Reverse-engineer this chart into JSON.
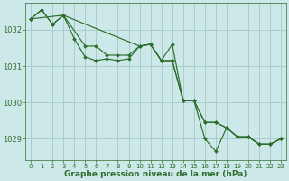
{
  "title": "Graphe pression niveau de la mer (hPa)",
  "bg_color": "#cce8e8",
  "grid_color": "#aacccc",
  "line_color": "#2d6e2d",
  "marker_color": "#2d6e2d",
  "xlim": [
    -0.5,
    23.5
  ],
  "ylim": [
    1028.4,
    1032.75
  ],
  "yticks": [
    1029,
    1030,
    1031,
    1032
  ],
  "xticks": [
    0,
    1,
    2,
    3,
    4,
    5,
    6,
    7,
    8,
    9,
    10,
    11,
    12,
    13,
    14,
    15,
    16,
    17,
    18,
    19,
    20,
    21,
    22,
    23
  ],
  "line1_x": [
    0,
    1,
    2,
    3,
    4,
    5,
    6,
    7,
    8,
    9,
    10,
    11,
    12,
    13,
    14,
    15,
    16,
    17,
    18,
    19,
    20,
    21,
    22,
    23
  ],
  "line1_y": [
    1032.3,
    1032.55,
    1032.15,
    1032.4,
    1031.75,
    1031.25,
    1031.15,
    1031.2,
    1031.15,
    1031.2,
    1031.55,
    1031.6,
    1031.15,
    1031.6,
    1030.05,
    1030.05,
    1029.0,
    1028.65,
    1029.3,
    1029.05,
    1029.05,
    1028.85,
    1028.85,
    1029.0
  ],
  "line2_x": [
    0,
    1,
    2,
    3,
    5,
    6,
    7,
    8,
    9,
    10,
    11,
    12,
    13,
    14,
    15,
    16,
    17,
    18,
    19,
    20,
    21,
    22,
    23
  ],
  "line2_y": [
    1032.3,
    1032.55,
    1032.15,
    1032.4,
    1031.55,
    1031.55,
    1031.3,
    1031.3,
    1031.3,
    1031.55,
    1031.6,
    1031.15,
    1031.15,
    1030.05,
    1030.05,
    1029.45,
    1029.45,
    1029.3,
    1029.05,
    1029.05,
    1028.85,
    1028.85,
    1029.0
  ],
  "line3_x": [
    0,
    3,
    10,
    11,
    12,
    13,
    14,
    15,
    16,
    17,
    18,
    19,
    20,
    21,
    22,
    23
  ],
  "line3_y": [
    1032.3,
    1032.4,
    1031.55,
    1031.6,
    1031.15,
    1031.15,
    1030.05,
    1030.05,
    1029.45,
    1029.45,
    1029.3,
    1029.05,
    1029.05,
    1028.85,
    1028.85,
    1029.0
  ]
}
